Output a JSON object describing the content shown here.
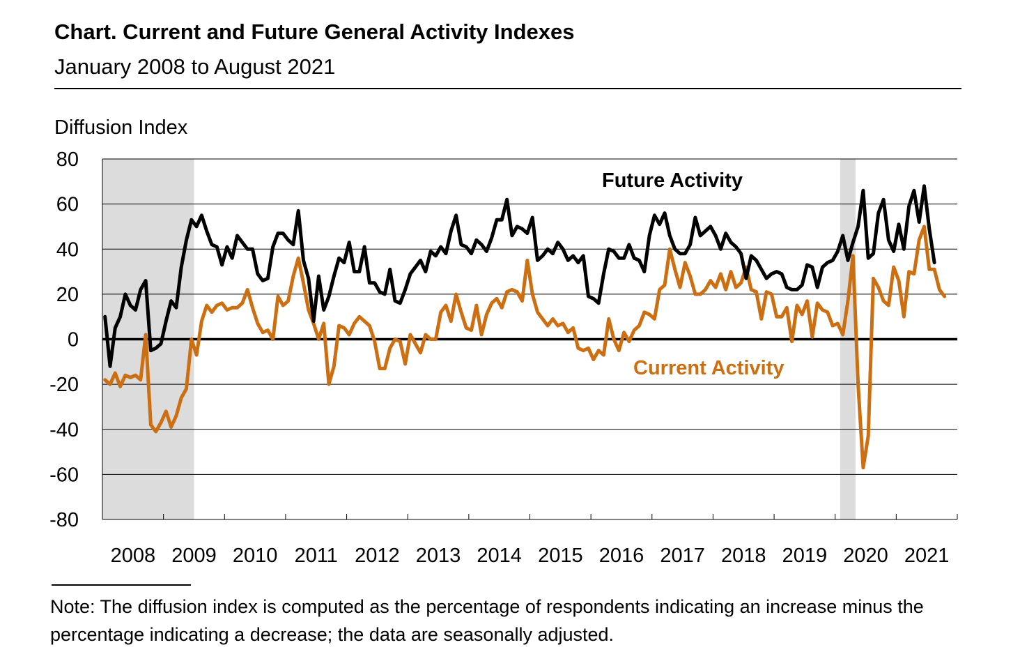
{
  "header": {
    "title": "Chart. Current and Future General Activity Indexes",
    "subtitle": "January 2008 to August 2021"
  },
  "footer": {
    "note": "Note: The diffusion index is computed as the percentage of respondents indicating an increase minus the percentage indicating a decrease; the data are seasonally adjusted."
  },
  "chart_data": {
    "type": "line",
    "title": "Chart. Current and Future General Activity Indexes",
    "subtitle": "January 2008 to August 2021",
    "ylabel": "Diffusion Index",
    "xlabel": "",
    "ylim": [
      -80,
      80
    ],
    "yticks": [
      -80,
      -60,
      -40,
      -20,
      0,
      20,
      40,
      60,
      80
    ],
    "x_start": "2008-01",
    "x_end": "2021-08",
    "year_labels": [
      "2008",
      "2009",
      "2010",
      "2011",
      "2012",
      "2013",
      "2014",
      "2015",
      "2016",
      "2017",
      "2018",
      "2019",
      "2020",
      "2021"
    ],
    "recessions": [
      {
        "start": "2008-01",
        "end": "2009-06"
      },
      {
        "start": "2020-02",
        "end": "2020-04"
      }
    ],
    "colors": {
      "future": "#000000",
      "current": "#CC6F12",
      "recession": "#DCDCDC",
      "grid": "#000000"
    },
    "series": [
      {
        "name": "Future Activity",
        "key": "future",
        "label": "Future Activity",
        "values": [
          10,
          -12,
          5,
          10,
          20,
          15,
          13,
          22,
          26,
          -5,
          -4,
          -2,
          8,
          17,
          14,
          32,
          44,
          53,
          50,
          55,
          48,
          42,
          41,
          33,
          41,
          36,
          46,
          43,
          40,
          40,
          29,
          26,
          27,
          41,
          47,
          47,
          44,
          42,
          57,
          35,
          27,
          8,
          28,
          13,
          19,
          28,
          36,
          34,
          43,
          30,
          30,
          41,
          25,
          25,
          21,
          20,
          31,
          17,
          16,
          22,
          29,
          32,
          35,
          30,
          39,
          37,
          41,
          38,
          48,
          55,
          42,
          41,
          38,
          44,
          42,
          39,
          45,
          53,
          53,
          62,
          46,
          50,
          49,
          47,
          54,
          35,
          37,
          40,
          38,
          43,
          40,
          35,
          37,
          34,
          37,
          19,
          18,
          16,
          29,
          40,
          39,
          36,
          36,
          42,
          36,
          35,
          30,
          46,
          55,
          51,
          56,
          46,
          40,
          38,
          38,
          42,
          54,
          46,
          48,
          50,
          46,
          40,
          47,
          43,
          41,
          38,
          27,
          37,
          35,
          31,
          27,
          29,
          30,
          29,
          23,
          22,
          22,
          24,
          33,
          32,
          23,
          32,
          34,
          35,
          39,
          46,
          35,
          43,
          50,
          66,
          36,
          38,
          56,
          62,
          44,
          39,
          51,
          40,
          59,
          66,
          52,
          68,
          49,
          34
        ]
      },
      {
        "name": "Current Activity",
        "key": "current",
        "label": "Current Activity",
        "values": [
          -18,
          -20,
          -15,
          -21,
          -16,
          -17,
          -16,
          -18,
          2,
          -38,
          -41,
          -37,
          -32,
          -39,
          -34,
          -26,
          -22,
          0,
          -7,
          8,
          15,
          12,
          15,
          16,
          13,
          14,
          14,
          16,
          22,
          14,
          7,
          3,
          4,
          0,
          19,
          15,
          17,
          28,
          36,
          25,
          13,
          7,
          0,
          7,
          -20,
          -12,
          6,
          5,
          2,
          7,
          10,
          8,
          6,
          -1,
          -13,
          -13,
          -4,
          0,
          -1,
          -11,
          2,
          -2,
          -6,
          2,
          0,
          0,
          12,
          15,
          8,
          20,
          12,
          5,
          4,
          15,
          2,
          11,
          16,
          18,
          14,
          21,
          22,
          21,
          17,
          35,
          20,
          12,
          9,
          6,
          9,
          6,
          7,
          3,
          5,
          -4,
          -5,
          -4,
          -9,
          -5,
          -7,
          9,
          0,
          -5,
          3,
          -1,
          4,
          6,
          12,
          11,
          9,
          22,
          24,
          40,
          31,
          23,
          34,
          28,
          20,
          20,
          22,
          26,
          23,
          29,
          22,
          30,
          23,
          25,
          32,
          22,
          21,
          9,
          21,
          20,
          10,
          10,
          14,
          -1,
          15,
          11,
          17,
          1,
          16,
          13,
          12,
          6,
          7,
          2,
          17,
          37,
          -20,
          -57,
          -43,
          27,
          23,
          17,
          15,
          32,
          26,
          10,
          30,
          29,
          44,
          50,
          31,
          31,
          22,
          19
        ]
      }
    ]
  }
}
